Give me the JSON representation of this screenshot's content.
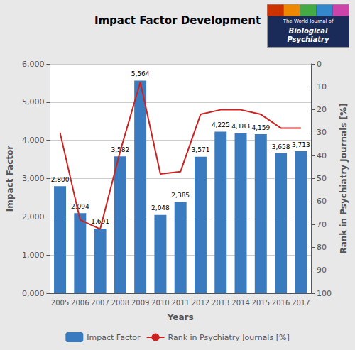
{
  "chart_data": {
    "type": "bar",
    "title": "Impact Factor Development",
    "xlabel": "Years",
    "ylabel": "Impact Factor",
    "y2label": "Rank in Psychiatry Journals [%]",
    "categories": [
      "2005",
      "2006",
      "2007",
      "2008",
      "2009",
      "2010",
      "2011",
      "2012",
      "2013",
      "2014",
      "2015",
      "2016",
      "2017"
    ],
    "series": [
      {
        "name": "Impact Factor",
        "type": "bar",
        "color": "#3a7bbf",
        "values": [
          2800,
          2094,
          1691,
          3582,
          5564,
          2048,
          2385,
          3571,
          4225,
          4183,
          4159,
          3658,
          3713
        ],
        "value_labels": [
          "2,800",
          "2,094",
          "1,691",
          "3,582",
          "5,564",
          "2,048",
          "2,385",
          "3,571",
          "4,225",
          "4,183",
          "4,159",
          "3,658",
          "3,713"
        ],
        "data_labels": true
      },
      {
        "name": "Rank in Psychiatry Journals [%]",
        "type": "line",
        "color": "#cc2222",
        "axis": "y2",
        "values": [
          30,
          68,
          72,
          38,
          8,
          48,
          47,
          22,
          20,
          20,
          22,
          28,
          28
        ]
      }
    ],
    "ylim": [
      0,
      6000
    ],
    "yticks": [
      {
        "value": 0,
        "label": "0,000"
      },
      {
        "value": 1000,
        "label": "1,000"
      },
      {
        "value": 2000,
        "label": "2,000"
      },
      {
        "value": 3000,
        "label": "3,000"
      },
      {
        "value": 4000,
        "label": "4,000"
      },
      {
        "value": 5000,
        "label": "5,000"
      },
      {
        "value": 6000,
        "label": "6,000"
      }
    ],
    "y2lim": [
      100,
      0
    ],
    "y2ticks": [
      0,
      10,
      20,
      30,
      40,
      50,
      60,
      70,
      80,
      90,
      100
    ],
    "grid": true,
    "legend": "bottom",
    "annotations": [
      "The World Journal of",
      "Biological\nPsychiatry"
    ]
  }
}
